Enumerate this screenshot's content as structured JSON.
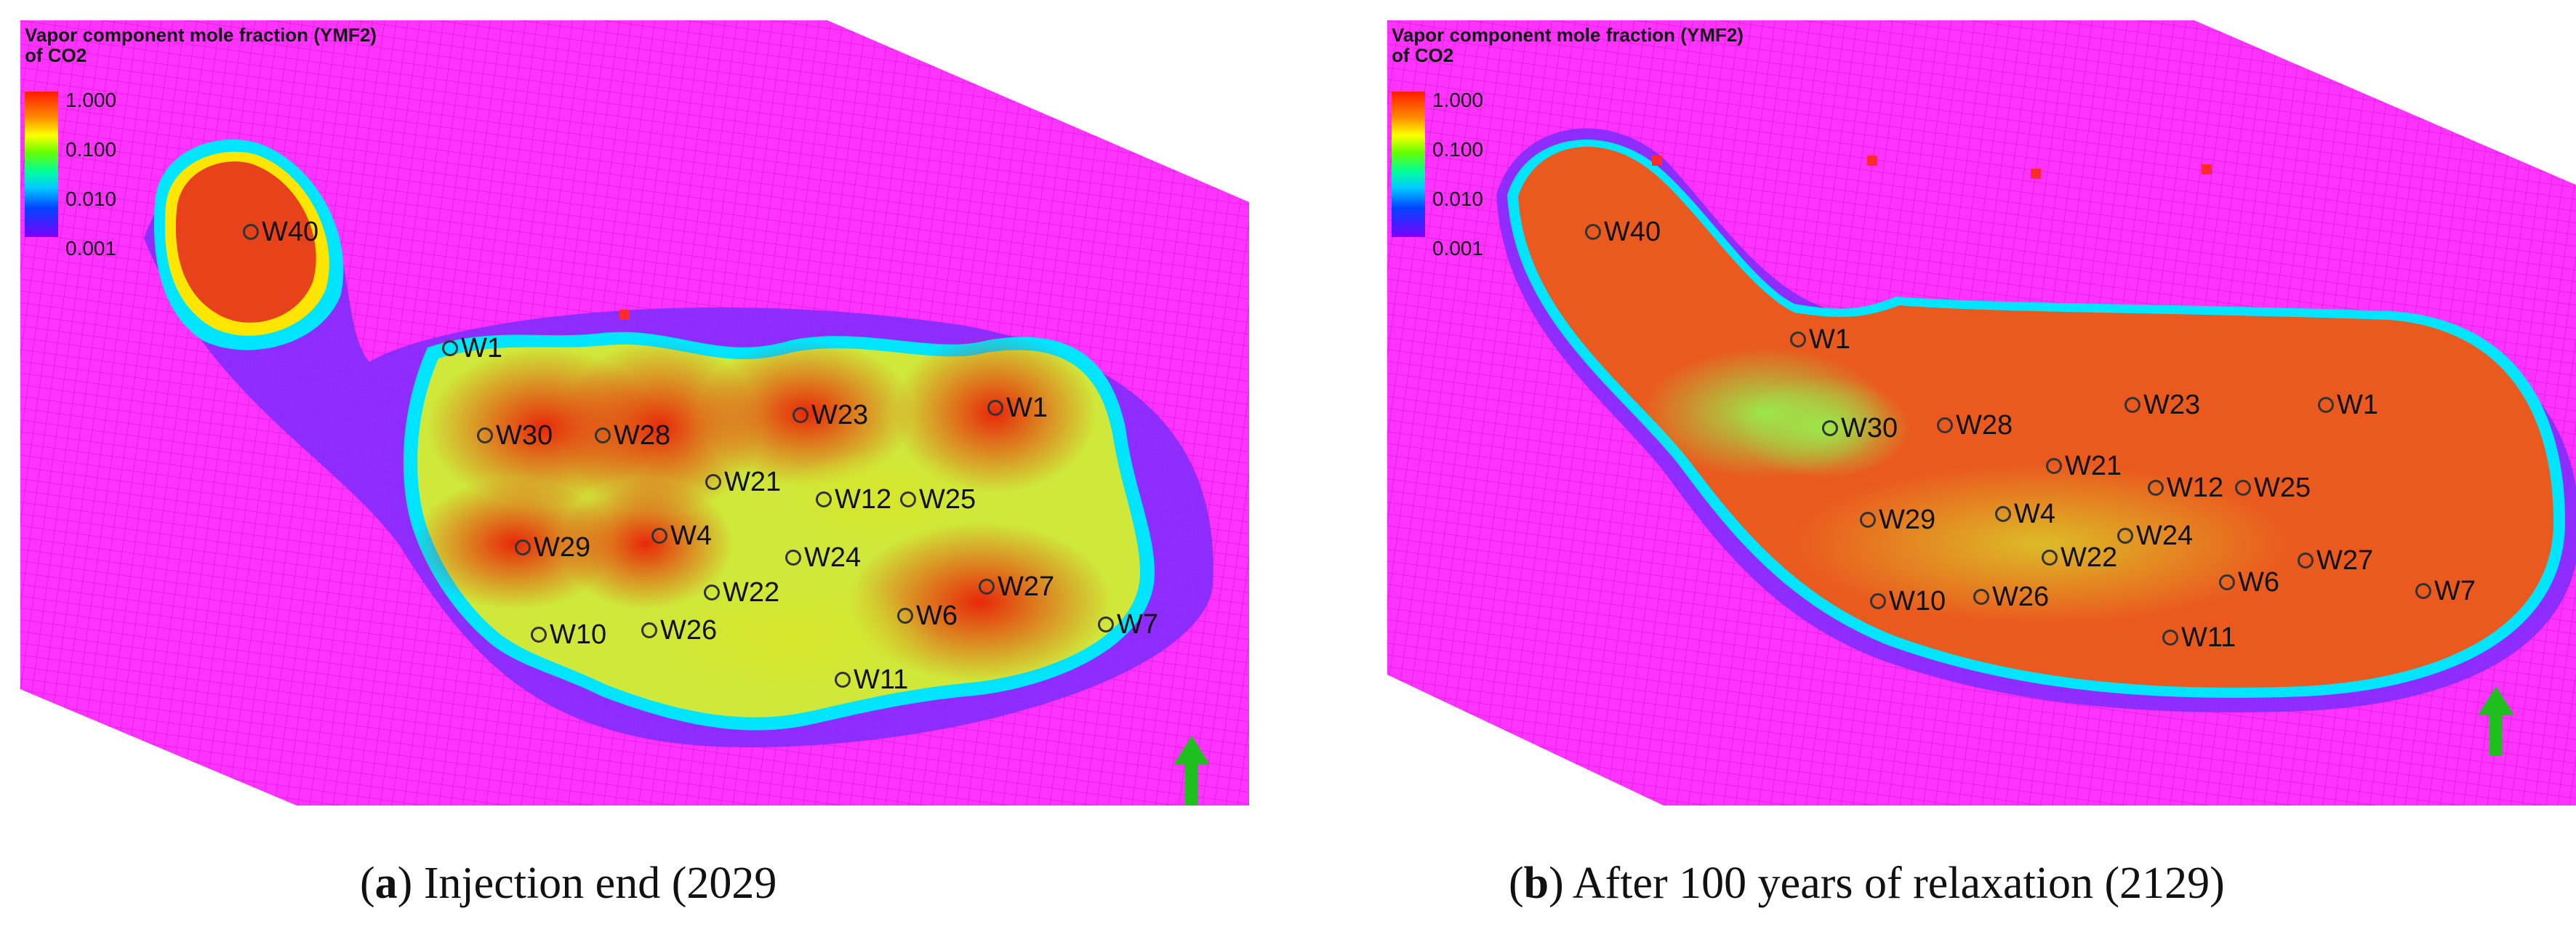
{
  "legend": {
    "title_line1": "Vapor component mole fraction (YMF2)",
    "title_line2": "of CO2",
    "ticks": [
      "1.000",
      "0.100",
      "0.010",
      "0.001"
    ],
    "scale": "logarithmic",
    "colors": [
      "#ff1a00",
      "#ff8c00",
      "#ffff00",
      "#66ff00",
      "#00ff99",
      "#00ccff",
      "#0044ff",
      "#7a00ff"
    ]
  },
  "background_color": "#ff33ff",
  "north_arrow_color": "#1fbf1f",
  "panels": [
    {
      "id": "a",
      "caption_letter": "a",
      "caption_text": "Injection end (2029",
      "wells": [
        "W40",
        "W1",
        "W30",
        "W28",
        "W23",
        "W1",
        "W21",
        "W12",
        "W25",
        "W29",
        "W4",
        "W24",
        "W22",
        "W6",
        "W27",
        "W10",
        "W26",
        "W7",
        "W11"
      ]
    },
    {
      "id": "b",
      "caption_letter": "b",
      "caption_text": "After 100 years of relaxation (2129)",
      "wells": [
        "W40",
        "W1",
        "W30",
        "W28",
        "W23",
        "W1",
        "W21",
        "W12",
        "W25",
        "W29",
        "W4",
        "W24",
        "W22",
        "W6",
        "W27",
        "W10",
        "W26",
        "W7",
        "W11"
      ]
    }
  ]
}
